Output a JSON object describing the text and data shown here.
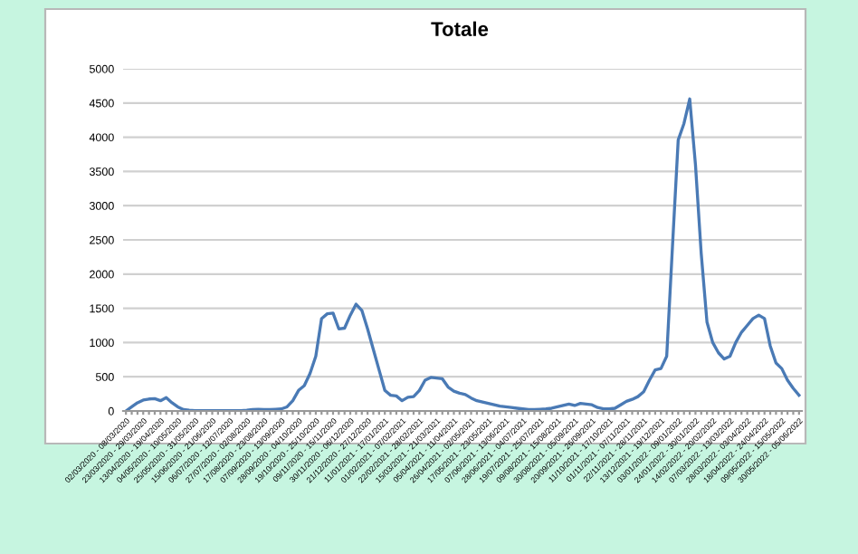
{
  "chart_data": {
    "type": "line",
    "title": "Totale",
    "categories": [
      "02/03/2020 - 08/03/2020",
      null,
      null,
      "23/03/2020 - 29/03/2020",
      null,
      null,
      "13/04/2020 - 19/04/2020",
      null,
      null,
      "04/05/2020 - 10/05/2020",
      null,
      null,
      "25/05/2020 - 31/05/2020",
      null,
      null,
      "15/06/2020 - 21/06/2020",
      null,
      null,
      "06/07/2020 - 12/07/2020",
      null,
      null,
      "27/07/2020 - 02/08/2020",
      null,
      null,
      "17/08/2020 - 23/08/2020",
      null,
      null,
      "07/09/2020 - 13/09/2020",
      null,
      null,
      "28/09/2020 - 04/10/2020",
      null,
      null,
      "19/10/2020 - 25/10/2020",
      null,
      null,
      "09/11/2020 - 15/11/2020",
      null,
      null,
      "30/11/2020 - 06/12/2020",
      null,
      null,
      "21/12/2020 - 27/12/2020",
      null,
      null,
      "11/01/2021 - 17/01/2021",
      null,
      null,
      "01/02/2021 - 07/02/2021",
      null,
      null,
      "22/02/2021 - 28/02/2021",
      null,
      null,
      "15/03/2021 - 21/03/2021",
      null,
      null,
      "05/04/2021 - 11/04/2021",
      null,
      null,
      "26/04/2021 - 02/05/2021",
      null,
      null,
      "17/05/2021 - 23/05/2021",
      null,
      null,
      "07/06/2021 - 13/06/2021",
      null,
      null,
      "28/06/2021 - 04/07/2021",
      null,
      null,
      "19/07/2021 - 25/07/2021",
      null,
      null,
      "09/08/2021 - 15/08/2021",
      null,
      null,
      "30/08/2021 - 05/09/2021",
      null,
      null,
      "20/09/2021 - 26/09/2021",
      null,
      null,
      "11/10/2021 - 17/10/2021",
      null,
      null,
      "01/11/2021 - 07/11/2021",
      null,
      null,
      "22/11/2021 - 28/11/2021",
      null,
      null,
      "13/12/2021 - 19/12/2021",
      null,
      null,
      "03/01/2022 - 09/01/2022",
      null,
      null,
      "24/01/2022 - 30/01/2022",
      null,
      null,
      "14/02/2022 - 20/02/2022",
      null,
      null,
      "07/03/2022 - 13/03/2022",
      null,
      null,
      "28/03/2022 - 03/04/2022",
      null,
      null,
      "18/04/2022 - 24/04/2022",
      null,
      null,
      "09/05/2022 - 15/05/2022",
      null,
      null,
      "30/05/2022 - 05/06/2022"
    ],
    "series": [
      {
        "color": "#4a7ab5",
        "values": [
          0,
          60,
          120,
          160,
          175,
          180,
          150,
          195,
          120,
          60,
          20,
          10,
          5,
          5,
          5,
          5,
          5,
          5,
          5,
          5,
          5,
          10,
          20,
          25,
          20,
          20,
          25,
          30,
          60,
          150,
          300,
          370,
          550,
          800,
          1350,
          1420,
          1430,
          1200,
          1210,
          1400,
          1560,
          1470,
          1200,
          900,
          600,
          300,
          230,
          220,
          150,
          200,
          210,
          300,
          450,
          490,
          480,
          470,
          350,
          290,
          260,
          240,
          190,
          150,
          130,
          110,
          90,
          70,
          60,
          50,
          40,
          30,
          20,
          20,
          25,
          30,
          40,
          60,
          80,
          100,
          80,
          110,
          100,
          90,
          50,
          30,
          30,
          40,
          90,
          140,
          170,
          210,
          280,
          450,
          600,
          620,
          800,
          2400,
          3960,
          4200,
          4560,
          3600,
          2300,
          1300,
          1000,
          850,
          760,
          800,
          1000,
          1150,
          1250,
          1350,
          1400,
          1350,
          950,
          700,
          620,
          450,
          330,
          230
        ]
      }
    ],
    "ylim": [
      0,
      5000
    ],
    "yticks": [
      0,
      500,
      1000,
      1500,
      2000,
      2500,
      3000,
      3500,
      4000,
      4500,
      5000
    ],
    "grid": "y",
    "marker": "none",
    "line_style": "solid"
  }
}
